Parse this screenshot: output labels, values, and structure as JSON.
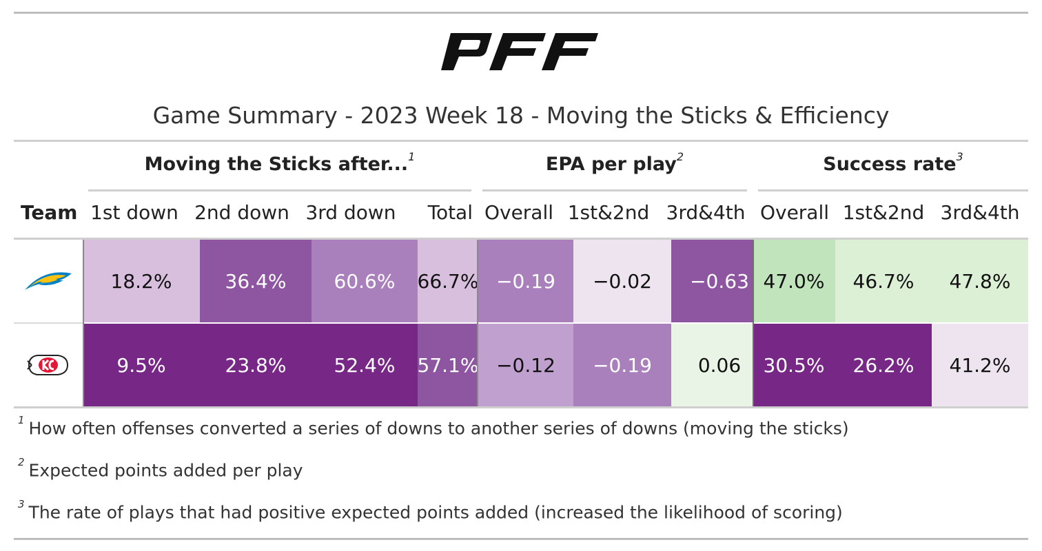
{
  "header": {
    "logo_text": "PFF",
    "title": "Game Summary - 2023 Week 18 - Moving the Sticks & Efficiency"
  },
  "spanners": [
    {
      "label": "Moving the Sticks after...",
      "note": "1"
    },
    {
      "label": "EPA per play",
      "note": "2"
    },
    {
      "label": "Success rate",
      "note": "3"
    }
  ],
  "columns": {
    "team": "Team",
    "sticks": [
      "1st down",
      "2nd down",
      "3rd down",
      "Total"
    ],
    "epa": [
      "Overall",
      "1st&2nd",
      "3rd&4th"
    ],
    "success": [
      "Overall",
      "1st&2nd",
      "3rd&4th"
    ]
  },
  "colors": {
    "purple_scale": [
      "#ede4f0",
      "#d8bfde",
      "#bfa0cf",
      "#a97fbc",
      "#8e56a0",
      "#772886"
    ],
    "green_scale": [
      "#eaf4e6",
      "#dcf0d6",
      "#c2e4bd"
    ]
  },
  "chart_data": {
    "type": "table",
    "title": "Game Summary - 2023 Week 18 - Moving the Sticks & Efficiency",
    "rows": [
      {
        "team_icon": "chargers-logo-icon",
        "values": [
          "18.2%",
          "36.4%",
          "60.6%",
          "66.7%",
          "−0.19",
          "−0.02",
          "−0.63",
          "47.0%",
          "46.7%",
          "47.8%"
        ],
        "fill": [
          "#d8bfde",
          "#8e56a0",
          "#a97fbc",
          "#d8bfde",
          "#a97fbc",
          "#ede4f0",
          "#8e56a0",
          "#c2e4bd",
          "#dcf0d6",
          "#dcf0d6"
        ],
        "text_light": [
          false,
          true,
          true,
          false,
          true,
          false,
          true,
          false,
          false,
          false
        ]
      },
      {
        "team_icon": "chiefs-logo-icon",
        "values": [
          "9.5%",
          "23.8%",
          "52.4%",
          "57.1%",
          "−0.12",
          "−0.19",
          "0.06",
          "30.5%",
          "26.2%",
          "41.2%"
        ],
        "fill": [
          "#772886",
          "#772886",
          "#772886",
          "#8e56a0",
          "#bfa0cf",
          "#a97fbc",
          "#eaf4e6",
          "#772886",
          "#772886",
          "#ede4f0"
        ],
        "text_light": [
          true,
          true,
          true,
          true,
          false,
          true,
          false,
          true,
          true,
          false
        ]
      }
    ]
  },
  "footnotes": [
    {
      "mark": "1",
      "text": "How often offenses converted a series of downs to another series of downs (moving the sticks)"
    },
    {
      "mark": "2",
      "text": "Expected points added per play"
    },
    {
      "mark": "3",
      "text": "The rate of plays that had positive expected points added (increased the likelihood of scoring)"
    }
  ]
}
